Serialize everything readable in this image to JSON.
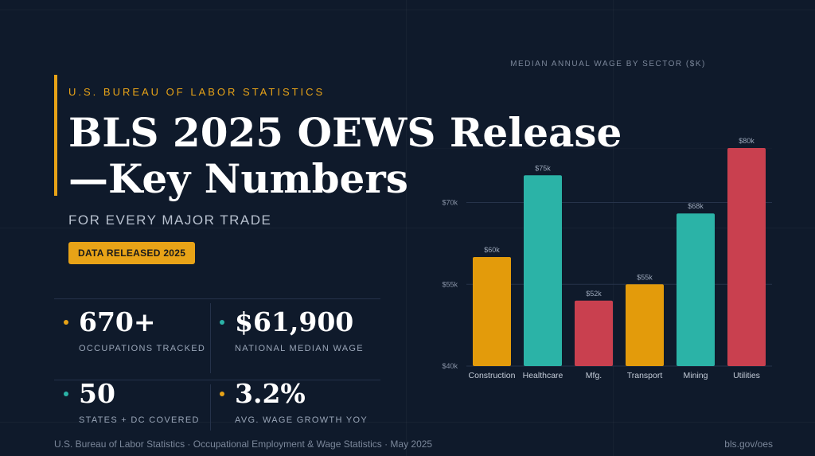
{
  "header": {
    "eyebrow": "U.S. BUREAU OF LABOR STATISTICS",
    "title": "BLS 2025 OEWS Release —Key Numbers",
    "subtitle": "FOR EVERY MAJOR TRADE",
    "badge": "DATA RELEASED 2025"
  },
  "stats": [
    {
      "value": "670+",
      "label": "OCCUPATIONS TRACKED",
      "dot_color": "#e8a317"
    },
    {
      "value": "$61,900",
      "label": "NATIONAL MEDIAN WAGE",
      "dot_color": "#2bb3a7"
    },
    {
      "value": "50",
      "label": "STATES + DC COVERED",
      "dot_color": "#2bb3a7"
    },
    {
      "value": "3.2%",
      "label": "AVG. WAGE GROWTH YOY",
      "dot_color": "#e8a317"
    }
  ],
  "footer": {
    "source": "U.S. Bureau of Labor Statistics · Occupational Employment & Wage Statistics · May 2025",
    "link": "bls.gov/oes"
  },
  "chart_data": {
    "type": "bar",
    "title": "MEDIAN ANNUAL WAGE BY SECTOR ($K)",
    "categories": [
      "Construction",
      "Healthcare",
      "Mfg.",
      "Transport",
      "Mining",
      "Utilities"
    ],
    "values": [
      60,
      75,
      52,
      55,
      68,
      80
    ],
    "data_labels": [
      "$60k",
      "$75k",
      "$52k",
      "$55k",
      "$68k",
      "$80k"
    ],
    "colors": [
      "#e39b0b",
      "#2bb3a7",
      "#c9404f",
      "#e39b0b",
      "#2bb3a7",
      "#c9404f"
    ],
    "ylim": [
      40,
      80
    ],
    "yticks": [
      40,
      55,
      70
    ],
    "ytick_labels": [
      "$40k",
      "$55k",
      "$70k"
    ],
    "grid": true,
    "xlabel": "",
    "ylabel": ""
  }
}
